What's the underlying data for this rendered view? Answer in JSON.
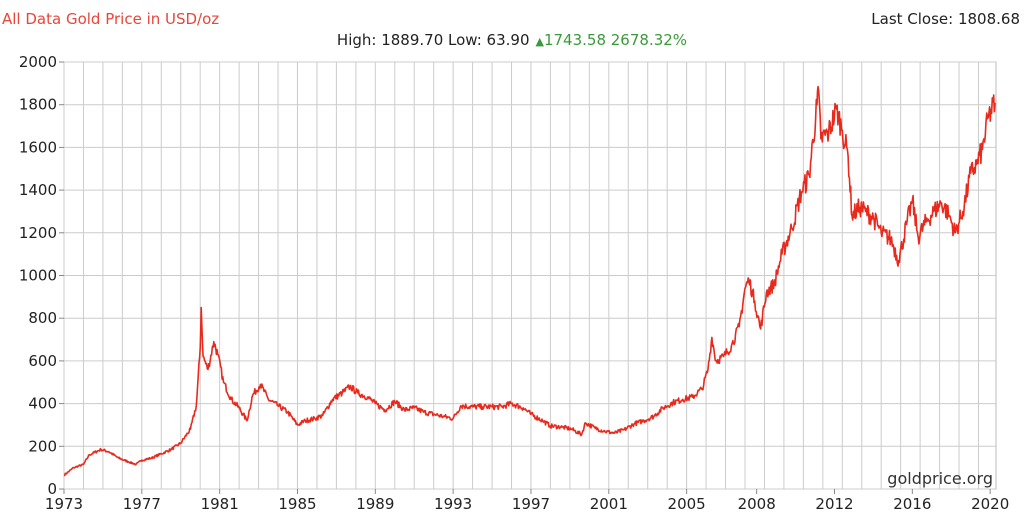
{
  "header": {
    "title": "All Data Gold Price in USD/oz",
    "last_close": "Last Close: 1808.68",
    "high_low": "High: 1889.70 Low: 63.90",
    "change_icon": "up-triangle-icon",
    "change": "1743.58 2678.32%"
  },
  "watermark": "goldprice.org",
  "colors": {
    "line": "#e8291c",
    "title": "#e8463a",
    "positive": "#3a9a3a",
    "grid": "#cccccc"
  },
  "chart_data": {
    "type": "line",
    "title": "All Data Gold Price in USD/oz",
    "xlabel": "",
    "ylabel": "",
    "xlim": [
      1973,
      2020.9
    ],
    "ylim": [
      0,
      2000
    ],
    "x_ticks": [
      1973,
      1977,
      1981,
      1985,
      1989,
      1993,
      1997,
      2001,
      2005,
      2008,
      2012,
      2016,
      2020
    ],
    "x_tick_positions": [
      1973,
      1977,
      1981,
      1985,
      1989,
      1993,
      1997,
      2001,
      2005,
      2008.6,
      2012.6,
      2016.6,
      2020.6
    ],
    "y_ticks": [
      0,
      200,
      400,
      600,
      800,
      1000,
      1200,
      1400,
      1600,
      1800,
      2000
    ],
    "grid": true,
    "series": [
      {
        "points": [
          [
            1973.0,
            65
          ],
          [
            1973.5,
            100
          ],
          [
            1974.0,
            115
          ],
          [
            1974.3,
            160
          ],
          [
            1974.9,
            185
          ],
          [
            1975.3,
            175
          ],
          [
            1975.8,
            145
          ],
          [
            1976.3,
            128
          ],
          [
            1976.7,
            115
          ],
          [
            1977.0,
            135
          ],
          [
            1977.5,
            145
          ],
          [
            1978.0,
            165
          ],
          [
            1978.5,
            185
          ],
          [
            1979.0,
            215
          ],
          [
            1979.5,
            280
          ],
          [
            1979.8,
            390
          ],
          [
            1980.0,
            660
          ],
          [
            1980.05,
            850
          ],
          [
            1980.15,
            620
          ],
          [
            1980.4,
            560
          ],
          [
            1980.7,
            690
          ],
          [
            1980.9,
            630
          ],
          [
            1981.2,
            500
          ],
          [
            1981.6,
            420
          ],
          [
            1982.0,
            380
          ],
          [
            1982.4,
            320
          ],
          [
            1982.7,
            440
          ],
          [
            1983.1,
            490
          ],
          [
            1983.5,
            420
          ],
          [
            1984.0,
            390
          ],
          [
            1984.5,
            360
          ],
          [
            1985.0,
            300
          ],
          [
            1985.4,
            320
          ],
          [
            1985.9,
            330
          ],
          [
            1986.3,
            345
          ],
          [
            1986.8,
            420
          ],
          [
            1987.3,
            450
          ],
          [
            1987.7,
            480
          ],
          [
            1988.1,
            450
          ],
          [
            1988.6,
            430
          ],
          [
            1989.0,
            400
          ],
          [
            1989.5,
            370
          ],
          [
            1990.0,
            410
          ],
          [
            1990.5,
            370
          ],
          [
            1991.0,
            380
          ],
          [
            1991.5,
            360
          ],
          [
            1992.0,
            350
          ],
          [
            1992.5,
            340
          ],
          [
            1993.0,
            330
          ],
          [
            1993.4,
            390
          ],
          [
            1994.0,
            385
          ],
          [
            1994.5,
            385
          ],
          [
            1995.0,
            385
          ],
          [
            1995.5,
            385
          ],
          [
            1996.0,
            400
          ],
          [
            1996.6,
            380
          ],
          [
            1997.0,
            350
          ],
          [
            1997.6,
            320
          ],
          [
            1998.0,
            295
          ],
          [
            1998.6,
            290
          ],
          [
            1999.1,
            280
          ],
          [
            1999.6,
            255
          ],
          [
            1999.8,
            310
          ],
          [
            2000.3,
            285
          ],
          [
            2000.8,
            270
          ],
          [
            2001.3,
            262
          ],
          [
            2001.8,
            278
          ],
          [
            2002.3,
            305
          ],
          [
            2002.8,
            320
          ],
          [
            2003.3,
            340
          ],
          [
            2003.8,
            380
          ],
          [
            2004.3,
            405
          ],
          [
            2004.8,
            420
          ],
          [
            2005.3,
            430
          ],
          [
            2005.8,
            470
          ],
          [
            2006.1,
            560
          ],
          [
            2006.3,
            710
          ],
          [
            2006.5,
            600
          ],
          [
            2006.9,
            620
          ],
          [
            2007.3,
            670
          ],
          [
            2007.7,
            760
          ],
          [
            2008.0,
            940
          ],
          [
            2008.2,
            980
          ],
          [
            2008.5,
            880
          ],
          [
            2008.8,
            750
          ],
          [
            2009.1,
            920
          ],
          [
            2009.5,
            960
          ],
          [
            2009.9,
            1100
          ],
          [
            2010.4,
            1220
          ],
          [
            2010.9,
            1390
          ],
          [
            2011.3,
            1470
          ],
          [
            2011.7,
            1800
          ],
          [
            2011.75,
            1885
          ],
          [
            2011.9,
            1640
          ],
          [
            2012.3,
            1670
          ],
          [
            2012.7,
            1780
          ],
          [
            2013.0,
            1680
          ],
          [
            2013.3,
            1560
          ],
          [
            2013.5,
            1280
          ],
          [
            2013.9,
            1320
          ],
          [
            2014.2,
            1300
          ],
          [
            2014.6,
            1270
          ],
          [
            2015.0,
            1200
          ],
          [
            2015.5,
            1170
          ],
          [
            2015.9,
            1070
          ],
          [
            2016.3,
            1240
          ],
          [
            2016.6,
            1350
          ],
          [
            2016.9,
            1180
          ],
          [
            2017.3,
            1250
          ],
          [
            2017.7,
            1300
          ],
          [
            2018.1,
            1340
          ],
          [
            2018.5,
            1280
          ],
          [
            2018.8,
            1200
          ],
          [
            2019.2,
            1300
          ],
          [
            2019.6,
            1480
          ],
          [
            2019.9,
            1520
          ],
          [
            2020.2,
            1590
          ],
          [
            2020.5,
            1740
          ],
          [
            2020.85,
            1809
          ]
        ]
      }
    ]
  }
}
